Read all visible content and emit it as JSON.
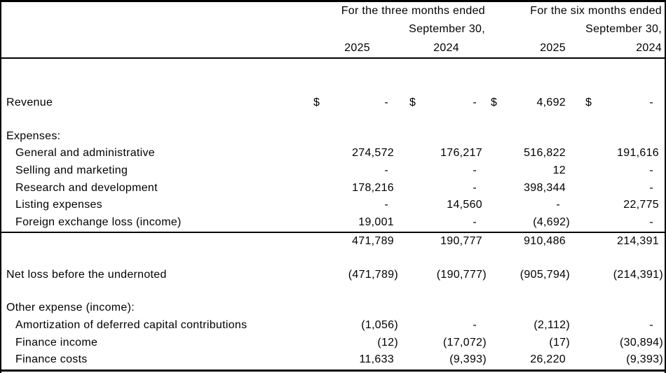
{
  "table": {
    "currency_symbol": "$",
    "header": {
      "groups": [
        {
          "line1": "For the three months ended",
          "line2": "September 30,"
        },
        {
          "line1": "For the six months ended",
          "line2": "September 30,"
        }
      ],
      "years": [
        "2025",
        "2024",
        "2025",
        "2024"
      ]
    },
    "rows": [
      {
        "label": "Revenue",
        "style": "revenue",
        "dollar": true,
        "values": [
          "-",
          "-",
          "4,692",
          "-"
        ]
      },
      {
        "label": "Expenses:",
        "style": "section",
        "values": null
      },
      {
        "label": "General and administrative",
        "style": "item",
        "values": [
          "274,572",
          "176,217",
          "516,822",
          "191,616"
        ]
      },
      {
        "label": "Selling and marketing",
        "style": "item",
        "values": [
          "-",
          "-",
          "12",
          "-"
        ]
      },
      {
        "label": "Research and development",
        "style": "item",
        "values": [
          "178,216",
          "-",
          "398,344",
          "-"
        ]
      },
      {
        "label": "Listing expenses",
        "style": "item",
        "values": [
          "-",
          "14,560",
          "-",
          "22,775"
        ]
      },
      {
        "label": "Foreign exchange loss (income)",
        "style": "item",
        "values": [
          "19,001",
          "-",
          "(4,692)",
          "-"
        ]
      },
      {
        "label": "",
        "style": "subtotal",
        "values": [
          "471,789",
          "190,777",
          "910,486",
          "214,391"
        ]
      },
      {
        "label": "Net loss before the undernoted",
        "style": "netloss",
        "values": [
          "(471,789)",
          "(190,777)",
          "(905,794)",
          "(214,391)"
        ]
      },
      {
        "label": "Other expense (income):",
        "style": "section",
        "values": null
      },
      {
        "label": "Amortization of deferred capital contributions",
        "style": "item",
        "values": [
          "(1,056)",
          "-",
          "(2,112)",
          "-"
        ]
      },
      {
        "label": "Finance income",
        "style": "item",
        "values": [
          "(12)",
          "(17,072)",
          "(17)",
          "(30,894)"
        ]
      },
      {
        "label": "Finance costs",
        "style": "item",
        "values": [
          "11,633",
          "(9,393)",
          "26,220",
          "(9,393)"
        ]
      }
    ]
  }
}
